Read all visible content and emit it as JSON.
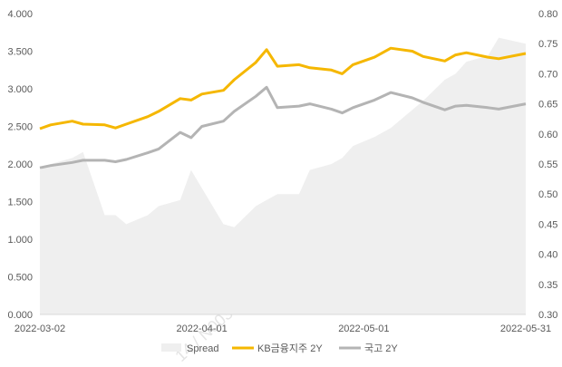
{
  "chart_data": {
    "type": "line",
    "x": [
      "2022-03-02",
      "2022-03-04",
      "2022-03-08",
      "2022-03-10",
      "2022-03-14",
      "2022-03-16",
      "2022-03-18",
      "2022-03-22",
      "2022-03-24",
      "2022-03-28",
      "2022-03-30",
      "2022-04-01",
      "2022-04-05",
      "2022-04-07",
      "2022-04-11",
      "2022-04-13",
      "2022-04-15",
      "2022-04-19",
      "2022-04-21",
      "2022-04-25",
      "2022-04-27",
      "2022-04-29",
      "2022-05-03",
      "2022-05-06",
      "2022-05-10",
      "2022-05-12",
      "2022-05-16",
      "2022-05-18",
      "2022-05-20",
      "2022-05-24",
      "2022-05-26",
      "2022-05-31"
    ],
    "series": [
      {
        "name": "Spread",
        "type": "area",
        "axis": "right",
        "color": "#efefef",
        "values": [
          0.54,
          0.55,
          0.56,
          0.57,
          0.465,
          0.465,
          0.45,
          0.465,
          0.48,
          0.49,
          0.54,
          0.51,
          0.45,
          0.445,
          0.48,
          0.49,
          0.5,
          0.5,
          0.54,
          0.55,
          0.56,
          0.58,
          0.595,
          0.61,
          0.64,
          0.655,
          0.69,
          0.7,
          0.72,
          0.73,
          0.76,
          0.75
        ]
      },
      {
        "name": "KB금융지주 2Y",
        "type": "line",
        "axis": "left",
        "color": "#f5b700",
        "values": [
          2.47,
          2.52,
          2.57,
          2.53,
          2.52,
          2.48,
          2.53,
          2.63,
          2.7,
          2.87,
          2.85,
          2.93,
          2.98,
          3.12,
          3.35,
          3.52,
          3.3,
          3.32,
          3.28,
          3.25,
          3.2,
          3.32,
          3.42,
          3.54,
          3.5,
          3.43,
          3.37,
          3.45,
          3.48,
          3.42,
          3.4,
          3.47
        ]
      },
      {
        "name": "국고 2Y",
        "type": "line",
        "axis": "left",
        "color": "#b4b4b4",
        "values": [
          1.95,
          1.98,
          2.02,
          2.05,
          2.05,
          2.03,
          2.06,
          2.15,
          2.2,
          2.42,
          2.35,
          2.5,
          2.57,
          2.7,
          2.9,
          3.02,
          2.75,
          2.77,
          2.8,
          2.73,
          2.68,
          2.75,
          2.85,
          2.95,
          2.88,
          2.82,
          2.72,
          2.77,
          2.78,
          2.75,
          2.73,
          2.8
        ]
      }
    ],
    "y_left": {
      "ticks": [
        "0.000",
        "0.500",
        "1.000",
        "1.500",
        "2.000",
        "2.500",
        "3.000",
        "3.500",
        "4.000"
      ],
      "lim": [
        0,
        4
      ]
    },
    "y_right": {
      "ticks": [
        "0.30",
        "0.35",
        "0.40",
        "0.45",
        "0.50",
        "0.55",
        "0.60",
        "0.65",
        "0.70",
        "0.75",
        "0.80"
      ],
      "lim": [
        0.3,
        0.8
      ]
    },
    "x_tick_labels": [
      "2022-03-02",
      "2022-04-01",
      "2022-05-01",
      "2022-05-31"
    ],
    "legend": {
      "position": "bottom",
      "entries": [
        "Spread",
        "KB금융지주 2Y",
        "국고 2Y"
      ]
    },
    "grid": false
  },
  "watermark": {
    "text": "14 / N003490044 / 20220602102​9"
  }
}
